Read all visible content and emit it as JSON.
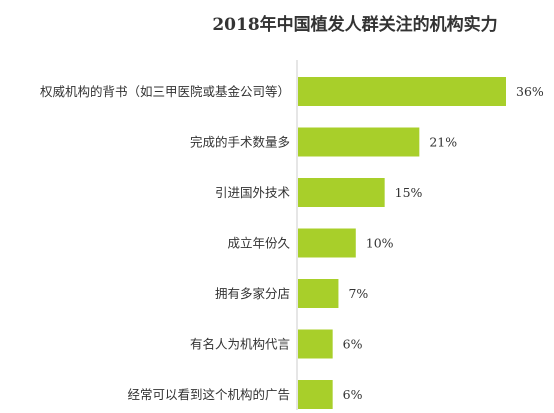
{
  "chart_data": {
    "type": "bar",
    "orientation": "horizontal",
    "title": "2018年中国植发人群关注的机构实力",
    "categories": [
      "权威机构的背书（如三甲医院或基金公司等）",
      "完成的手术数量多",
      "引进国外技术",
      "成立年份久",
      "拥有多家分店",
      "有名人为机构代言",
      "经常可以看到这个机构的广告"
    ],
    "values": [
      36,
      21,
      15,
      10,
      7,
      6,
      6
    ],
    "value_labels": [
      "36%",
      "21%",
      "15%",
      "10%",
      "7%",
      "6%",
      "6%"
    ],
    "unit": "%",
    "xlim": [
      0,
      36
    ],
    "bar_color": "#a8cf2a",
    "grid": false,
    "legend": "none"
  }
}
